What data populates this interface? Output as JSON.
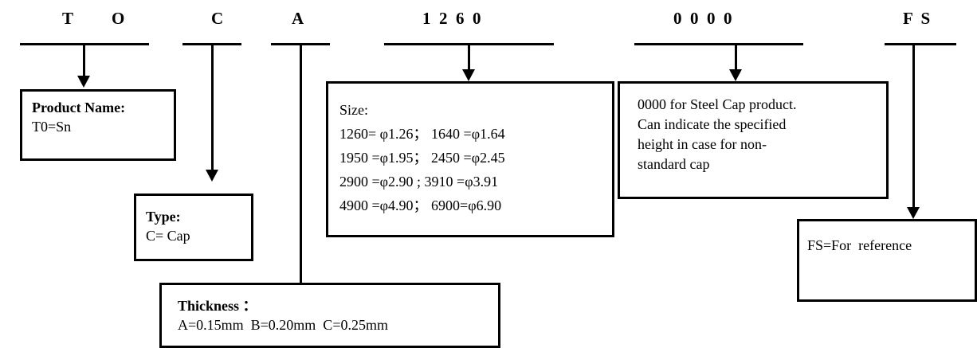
{
  "codes": {
    "c1": "T",
    "c2": "O",
    "c3": "C",
    "c4": "A",
    "c5": "1  2  6  0",
    "c6": "0  0  0  0",
    "c7": "F  S"
  },
  "boxes": {
    "product": {
      "label": "Product Name:",
      "lines": [
        "T0=Sn"
      ]
    },
    "type": {
      "label": "Type:",
      "lines": [
        "C= Cap"
      ]
    },
    "thickness": {
      "label": "Thickness ：",
      "lines": [
        "A=0.15mm  B=0.20mm  C=0.25mm"
      ]
    },
    "size": {
      "lines": [
        "Size:",
        "1260= φ1.26； 1640 =φ1.64",
        "1950 =φ1.95； 2450 =φ2.45",
        "2900 =φ2.90 ; 3910 =φ3.91",
        "4900 =φ4.90； 6900=φ6.90"
      ]
    },
    "height": {
      "lines": [
        "0000 for Steel Cap product.",
        "Can indicate the specified",
        "height in case for non-",
        "standard cap"
      ]
    },
    "reference": {
      "lines": [
        "FS=For  reference"
      ]
    }
  }
}
